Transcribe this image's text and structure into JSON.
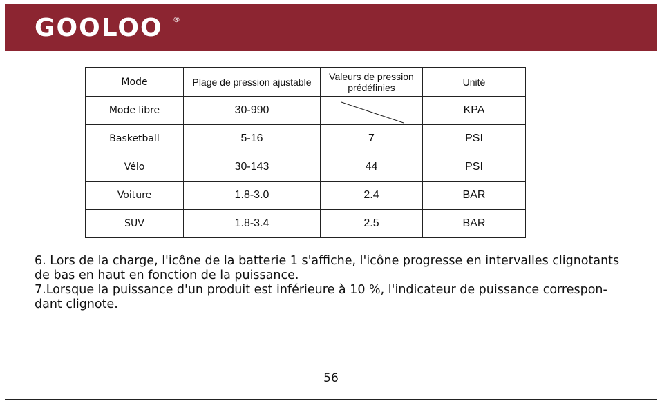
{
  "header": {
    "logo": "GOOLOO",
    "registered": "®"
  },
  "table": {
    "columns": [
      "Mode",
      "Plage de pression ajustable",
      "Valeurs de pression prédéfinies",
      "Unité"
    ],
    "rows": [
      [
        "Mode libre",
        "30-990",
        null,
        "KPA"
      ],
      [
        "Basketball",
        "5-16",
        "7",
        "PSI"
      ],
      [
        "Vélo",
        "30-143",
        "44",
        "PSI"
      ],
      [
        "Voiture",
        "1.8-3.0",
        "2.4",
        "BAR"
      ],
      [
        "SUV",
        "1.8-3.4",
        "2.5",
        "BAR"
      ]
    ]
  },
  "paragraphs": [
    {
      "lines": [
        "6. Lors de la charge, l'icône de la batterie 1 s'affiche, l'icône progresse en intervalles clignotants",
        "de bas en haut en fonction de la puissance."
      ]
    },
    {
      "lines": [
        "7.Lorsque la puissance d'un produit est inférieure à 10 %, l'indicateur de puissance correspon-",
        "dant clignote."
      ]
    }
  ],
  "page_number": "56"
}
